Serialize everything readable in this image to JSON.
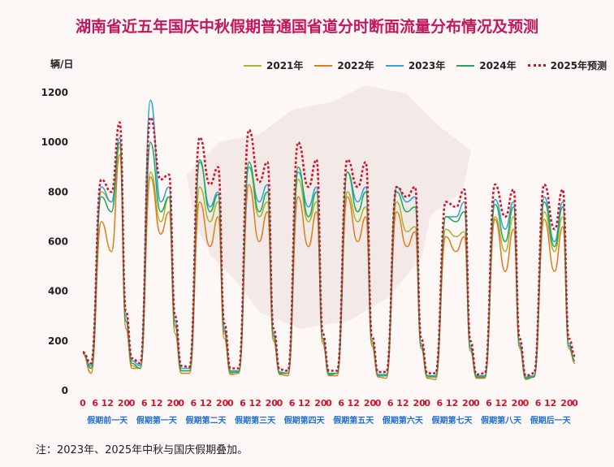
{
  "title": "湖南省近五年国庆中秋假期普通国省道分时断面流量分布情况及预测",
  "unit_label": "辆/日",
  "note": "注：2023年、2025年中秋与国庆假期叠加。",
  "colors": {
    "title": "#c2185b",
    "y2021": "#a4b52c",
    "y2022": "#e07b1e",
    "y2023": "#29a3d8",
    "y2024": "#1fa857",
    "y2025": "#d0142a",
    "tick_red": "#d0142a",
    "day_label": "#1f6fd1"
  },
  "chart_data": {
    "type": "line",
    "ylim": [
      0,
      1200
    ],
    "yticks": [
      0,
      200,
      400,
      600,
      800,
      1000,
      1200
    ],
    "hour_ticks": [
      "0",
      "6",
      "12",
      "20"
    ],
    "day_labels": [
      "假期前一天",
      "假期第一天",
      "假期第二天",
      "假期第三天",
      "假期第四天",
      "假期第五天",
      "假期第六天",
      "假期第七天",
      "假期第八天",
      "假期后一天"
    ],
    "legend_position": "top-right",
    "series": [
      {
        "name": "2021年",
        "color": "#a4b52c",
        "style": "solid",
        "days": [
          [
            150,
            90,
            800,
            760,
            980,
            280,
            100
          ],
          [
            150,
            90,
            880,
            680,
            780,
            260,
            80
          ],
          [
            150,
            80,
            820,
            680,
            760,
            230,
            70
          ],
          [
            140,
            80,
            900,
            700,
            760,
            210,
            70
          ],
          [
            130,
            70,
            850,
            680,
            760,
            200,
            60
          ],
          [
            130,
            70,
            800,
            680,
            740,
            190,
            60
          ],
          [
            130,
            60,
            760,
            640,
            660,
            180,
            55
          ],
          [
            130,
            55,
            650,
            620,
            640,
            170,
            55
          ],
          [
            140,
            60,
            700,
            560,
            700,
            180,
            50
          ],
          [
            150,
            60,
            720,
            560,
            700,
            180,
            120
          ]
        ]
      },
      {
        "name": "2022年",
        "color": "#e07b1e",
        "style": "solid",
        "days": [
          [
            150,
            70,
            680,
            560,
            950,
            250,
            90
          ],
          [
            150,
            90,
            860,
            630,
            720,
            230,
            70
          ],
          [
            140,
            70,
            760,
            580,
            700,
            210,
            65
          ],
          [
            130,
            70,
            830,
            600,
            720,
            200,
            65
          ],
          [
            120,
            60,
            780,
            580,
            720,
            190,
            60
          ],
          [
            120,
            60,
            780,
            600,
            700,
            180,
            55
          ],
          [
            120,
            50,
            720,
            580,
            640,
            170,
            50
          ],
          [
            120,
            45,
            620,
            560,
            620,
            160,
            50
          ],
          [
            130,
            50,
            690,
            480,
            650,
            170,
            45
          ],
          [
            140,
            55,
            690,
            480,
            660,
            170,
            110
          ]
        ]
      },
      {
        "name": "2023年",
        "color": "#29a3d8",
        "style": "solid",
        "days": [
          [
            150,
            100,
            820,
            760,
            1020,
            300,
            120
          ],
          [
            160,
            100,
            1170,
            760,
            820,
            280,
            90
          ],
          [
            150,
            90,
            920,
            740,
            800,
            250,
            80
          ],
          [
            150,
            80,
            900,
            760,
            830,
            230,
            75
          ],
          [
            140,
            70,
            880,
            740,
            820,
            210,
            70
          ],
          [
            140,
            70,
            880,
            760,
            820,
            200,
            65
          ],
          [
            140,
            65,
            820,
            760,
            780,
            190,
            60
          ],
          [
            140,
            60,
            700,
            700,
            760,
            180,
            60
          ],
          [
            150,
            60,
            770,
            650,
            760,
            190,
            55
          ],
          [
            160,
            60,
            780,
            600,
            760,
            190,
            120
          ]
        ]
      },
      {
        "name": "2024年",
        "color": "#1fa857",
        "style": "solid",
        "days": [
          [
            150,
            90,
            780,
            720,
            1000,
            280,
            110
          ],
          [
            150,
            90,
            1000,
            720,
            780,
            260,
            80
          ],
          [
            140,
            80,
            930,
            720,
            790,
            240,
            75
          ],
          [
            140,
            75,
            920,
            720,
            800,
            220,
            70
          ],
          [
            130,
            70,
            900,
            700,
            800,
            210,
            65
          ],
          [
            130,
            70,
            880,
            720,
            800,
            200,
            60
          ],
          [
            130,
            60,
            800,
            720,
            740,
            180,
            60
          ],
          [
            130,
            55,
            700,
            680,
            720,
            170,
            55
          ],
          [
            140,
            55,
            750,
            600,
            740,
            180,
            50
          ],
          [
            150,
            55,
            760,
            580,
            740,
            180,
            120
          ]
        ]
      },
      {
        "name": "2025年预测",
        "color": "#d0142a",
        "style": "dotted",
        "days": [
          [
            155,
            110,
            850,
            800,
            1080,
            320,
            130
          ],
          [
            165,
            110,
            1100,
            850,
            870,
            300,
            100
          ],
          [
            155,
            95,
            1020,
            830,
            900,
            270,
            90
          ],
          [
            155,
            90,
            1050,
            840,
            920,
            250,
            85
          ],
          [
            145,
            80,
            1000,
            820,
            930,
            230,
            80
          ],
          [
            145,
            80,
            930,
            820,
            920,
            220,
            75
          ],
          [
            145,
            75,
            820,
            780,
            820,
            210,
            70
          ],
          [
            145,
            70,
            760,
            740,
            810,
            200,
            65
          ],
          [
            155,
            70,
            830,
            700,
            810,
            210,
            60
          ],
          [
            165,
            70,
            830,
            650,
            810,
            210,
            140
          ]
        ]
      }
    ]
  }
}
